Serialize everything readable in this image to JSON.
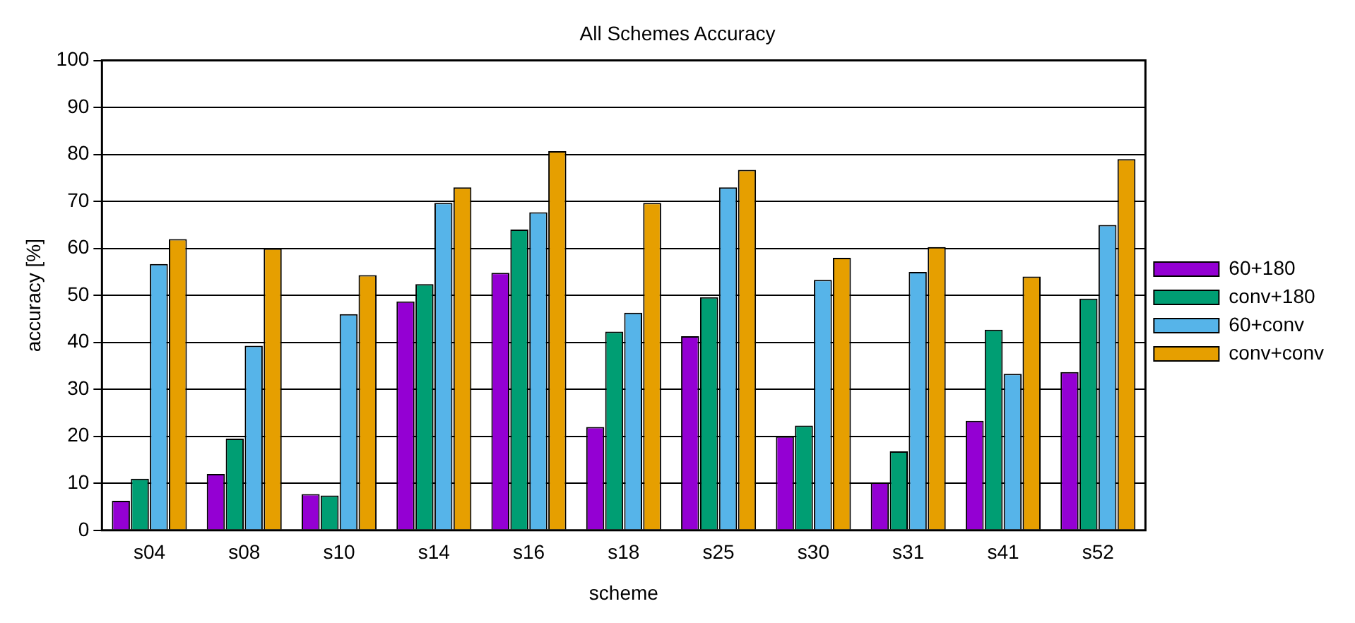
{
  "chart_data": {
    "type": "bar",
    "title": "All Schemes Accuracy",
    "xlabel": "scheme",
    "ylabel": "accuracy [%]",
    "categories": [
      "s04",
      "s08",
      "s10",
      "s14",
      "s16",
      "s18",
      "s25",
      "s30",
      "s31",
      "s41",
      "s52"
    ],
    "series": [
      {
        "name": "60+180",
        "color": "#9400d3",
        "values": [
          6.3,
          12,
          7.7,
          48.7,
          54.8,
          22,
          41.3,
          20,
          10.2,
          23.3,
          33.7
        ]
      },
      {
        "name": "conv+180",
        "color": "#009e73",
        "values": [
          11,
          19.5,
          7.4,
          52.4,
          64,
          42.3,
          49.6,
          22.3,
          16.8,
          42.7,
          49.3
        ]
      },
      {
        "name": "60+conv",
        "color": "#56b4e9",
        "values": [
          56.7,
          39.3,
          46,
          69.7,
          67.7,
          46.3,
          73,
          53.3,
          55,
          33.3,
          65
        ]
      },
      {
        "name": "conv+conv",
        "color": "#e69f00",
        "values": [
          62,
          60,
          54.3,
          73,
          80.7,
          69.7,
          76.7,
          58,
          60.3,
          54,
          79
        ]
      }
    ],
    "ylim": [
      0,
      100
    ],
    "yticks": [
      0,
      10,
      20,
      30,
      40,
      50,
      60,
      70,
      80,
      90,
      100
    ],
    "grid": "y",
    "legend": "right"
  }
}
